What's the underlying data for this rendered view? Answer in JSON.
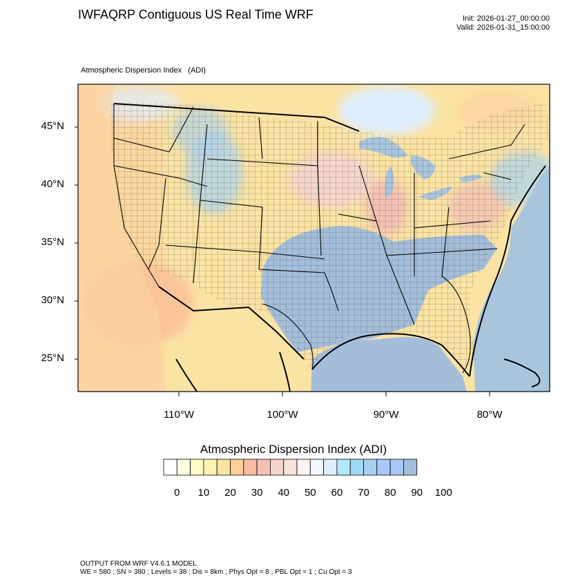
{
  "header": {
    "title": "IWFAQRP Contiguous US Real Time WRF",
    "init": "Init: 2026-01-27_00:00:00",
    "valid": "Valid: 2026-01-31_15:00:00"
  },
  "field": {
    "name": "Atmospheric Dispersion Index",
    "units": "(ADI)"
  },
  "axes": {
    "lat_labels": [
      "45°N",
      "40°N",
      "35°N",
      "30°N",
      "25°N"
    ],
    "lon_labels": [
      "110°W",
      "100°W",
      "90°W",
      "80°W"
    ]
  },
  "colorbar": {
    "title": "Atmospheric Dispersion Index  (ADI)",
    "colors": [
      "#ffffff",
      "#fefee0",
      "#fdfdc5",
      "#fcf1b1",
      "#fbe3a4",
      "#fad199",
      "#f9bca2",
      "#f4c0b4",
      "#f5d5cb",
      "#f5e2db",
      "#fdf3f4",
      "#f1f7fd",
      "#dfeefe",
      "#b3e7fc",
      "#9fdaf5",
      "#a8d1f0",
      "#a7c8f9",
      "#a7c7f5",
      "#a4bed9"
    ],
    "tick_labels": [
      "0",
      "10",
      "20",
      "30",
      "40",
      "50",
      "60",
      "70",
      "80",
      "90",
      "100"
    ]
  },
  "footer": {
    "line1": "OUTPUT FROM WRF V4.6.1 MODEL",
    "line2": "WE = 580 ; SN = 380 ; Levels = 38 ; Dis = 8km ; Phys Opt = 8 ; PBL Opt = 1 ; Cu Opt = 3"
  }
}
